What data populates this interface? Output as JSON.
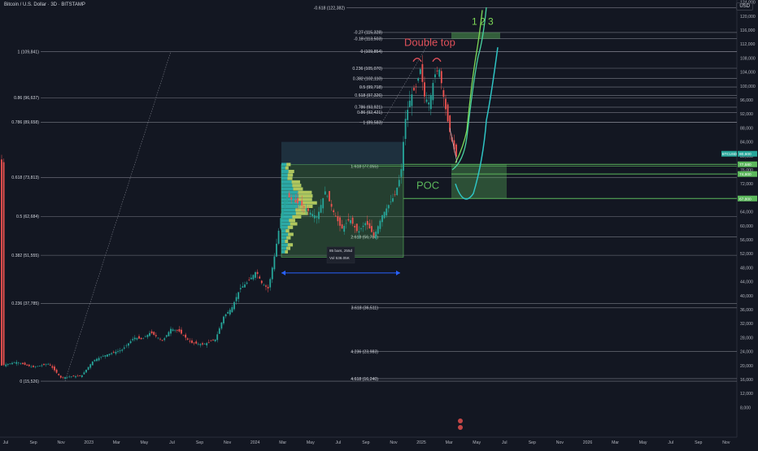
{
  "header": {
    "title": "Bitcoin / U.S. Dollar · 3D · BITSTAMP",
    "currency": "USD"
  },
  "chart_data": {
    "type": "candlestick",
    "symbol": "BTCUSD",
    "interval": "3D",
    "exchange": "BITSTAMP",
    "ylim": [
      8000,
      128000
    ],
    "y_ticks": [
      8000,
      12000,
      16000,
      20000,
      24000,
      28000,
      32000,
      36000,
      40000,
      44000,
      48000,
      52000,
      56000,
      60000,
      64000,
      68000,
      72000,
      76000,
      80000,
      84000,
      88000,
      92000,
      96000,
      100000,
      104000,
      108000,
      112000,
      116000,
      120000,
      124000,
      128000
    ],
    "y_tick_labels": [
      "8,000",
      "12,000",
      "16,000",
      "20,000",
      "24,000",
      "28,000",
      "32,000",
      "36,000",
      "40,000",
      "44,000",
      "48,000",
      "52,000",
      "56,000",
      "60,000",
      "64,000",
      "68,000",
      "72,000",
      "76,000",
      "80,000",
      "84,000",
      "88,000",
      "92,000",
      "96,000",
      "100,000",
      "104,000",
      "108,000",
      "112,000",
      "116,000",
      "120,000",
      "124,000",
      "128,000"
    ],
    "x_labels": [
      "Jul",
      "Sep",
      "Nov",
      "2023",
      "Mar",
      "May",
      "Jul",
      "Sep",
      "Nov",
      "2024",
      "Mar",
      "May",
      "Jul",
      "Sep",
      "Nov",
      "2025",
      "Mar",
      "May",
      "Jul",
      "Sep",
      "Nov",
      "2026",
      "Mar",
      "May",
      "Jul",
      "Sep",
      "Nov"
    ],
    "fib_levels": [
      {
        "label": "-0.618 (122,382)",
        "value": 122382
      },
      {
        "label": "1 (109,841)",
        "value": 109841
      },
      {
        "label": "0.86 (96,637)",
        "value": 96637
      },
      {
        "label": "0.786 (89,658)",
        "value": 89658
      },
      {
        "label": "0.618 (73,813)",
        "value": 73813
      },
      {
        "label": "0.5 (62,684)",
        "value": 62684
      },
      {
        "label": "0.382 (51,555)",
        "value": 51555
      },
      {
        "label": "0.236 (37,785)",
        "value": 37785
      },
      {
        "label": "0 (15,526)",
        "value": 15526
      }
    ],
    "fib_levels_2": [
      {
        "label": "-0.27 (115,328)",
        "value": 115328
      },
      {
        "label": "-0.18 (113,503)",
        "value": 113503
      },
      {
        "label": "0 (109,854)",
        "value": 109854
      },
      {
        "label": "0.236 (105,070)",
        "value": 105070
      },
      {
        "label": "0.382 (102,110)",
        "value": 102110
      },
      {
        "label": "0.5 (99,718)",
        "value": 99718
      },
      {
        "label": "0.618 (97,326)",
        "value": 97326
      },
      {
        "label": "0.786 (93,921)",
        "value": 93921
      },
      {
        "label": "0.86 (92,421)",
        "value": 92421
      },
      {
        "label": "1 (89,583)",
        "value": 89583
      }
    ],
    "ext_levels": [
      {
        "label": "1.618 (77,055)",
        "value": 77055
      },
      {
        "label": "2.618 (56,780)",
        "value": 56780
      },
      {
        "label": "3.618 (36,511)",
        "value": 36511
      },
      {
        "label": "4.236 (23,983)",
        "value": 23983
      },
      {
        "label": "4.618 (16,240)",
        "value": 16240
      }
    ],
    "price_tags": [
      {
        "label": "BTCUSD",
        "value": "80,600",
        "price": 80600,
        "color": "#26a69a"
      },
      {
        "label": "",
        "value": "77,580",
        "price": 77580,
        "color": "#5cb85c"
      },
      {
        "label": "",
        "value": "74,800",
        "price": 74800,
        "color": "#5cb85c"
      },
      {
        "label": "",
        "value": "67,800",
        "price": 67800,
        "color": "#5cb85c"
      }
    ],
    "annotations": {
      "double_top": "Double top",
      "poc": "POC",
      "numbers": "1 2 3",
      "range_bars": "85 bars, 255d",
      "range_vol": "Vol 536.05K"
    },
    "colors": {
      "up": "#26a69a",
      "down": "#ef5350",
      "fib": "#787b86",
      "green": "#5cb85c",
      "cyan": "#2ec4c4",
      "red_note": "#e0505a"
    }
  }
}
